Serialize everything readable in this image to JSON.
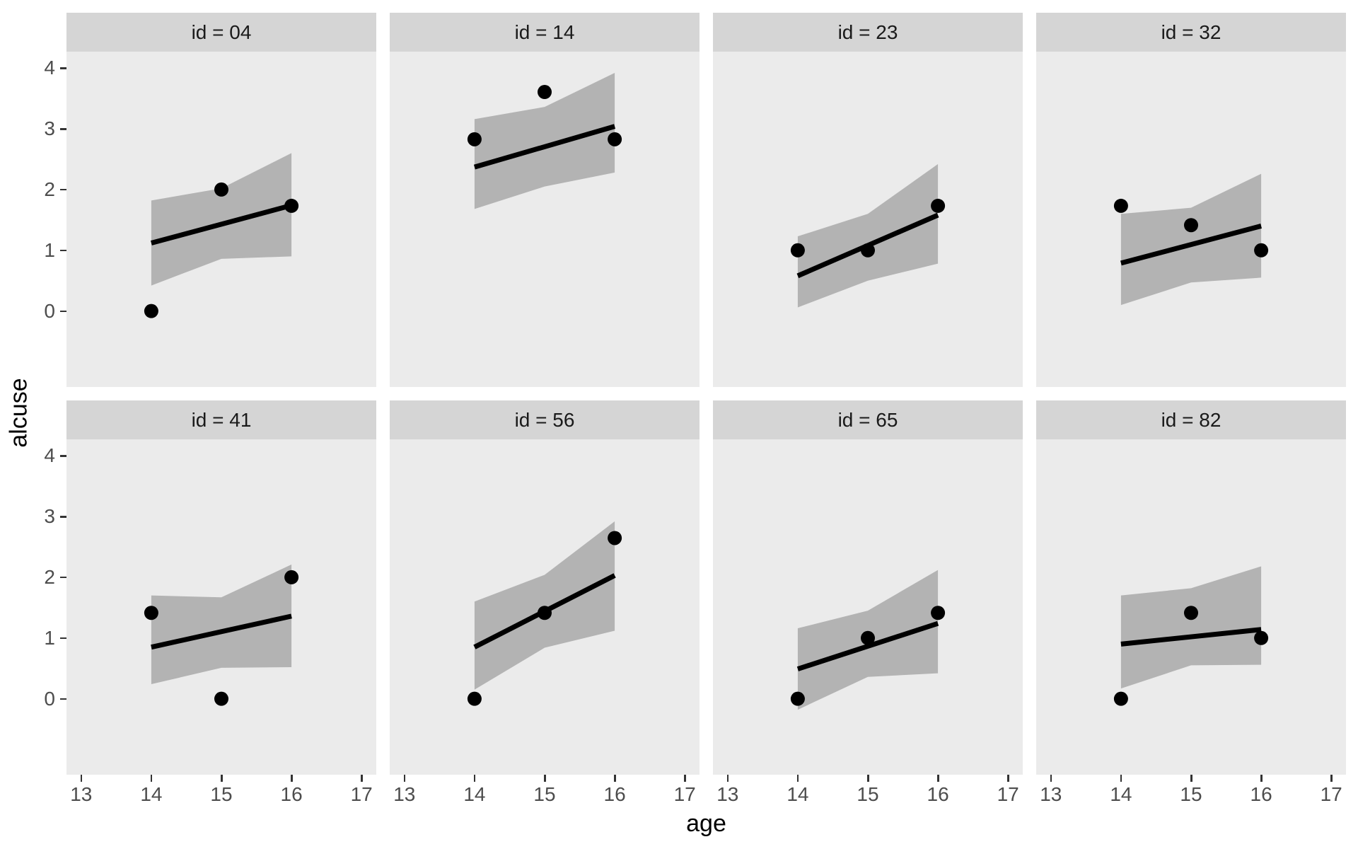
{
  "chart_data": {
    "type": "scatter",
    "title": "",
    "xlabel": "age",
    "ylabel": "alcuse",
    "grid": false,
    "legend": false,
    "facet_layout": {
      "rows": 2,
      "cols": 4
    },
    "x_domain": [
      12.79,
      17.21
    ],
    "y_domain": [
      -1.25,
      4.27
    ],
    "x_ticks": [
      13,
      14,
      15,
      16,
      17
    ],
    "y_ticks": [
      4,
      3,
      2,
      1,
      0
    ],
    "ages": [
      14,
      15,
      16
    ],
    "facets": [
      {
        "label": "id = 04",
        "points": [
          0,
          2.0,
          1.732
        ],
        "line": [
          1.12,
          1.74
        ],
        "ribbon_lo": [
          0.42,
          0.86,
          0.9
        ],
        "ribbon_hi": [
          1.82,
          2.02,
          2.6
        ]
      },
      {
        "label": "id = 14",
        "points": [
          2.828,
          3.606,
          2.828
        ],
        "line": [
          2.37,
          3.04
        ],
        "ribbon_lo": [
          1.68,
          2.05,
          2.28
        ],
        "ribbon_hi": [
          3.16,
          3.36,
          3.92
        ]
      },
      {
        "label": "id = 23",
        "points": [
          1.0,
          1.0,
          1.732
        ],
        "line": [
          0.58,
          1.58
        ],
        "ribbon_lo": [
          0.06,
          0.5,
          0.78
        ],
        "ribbon_hi": [
          1.23,
          1.6,
          2.42
        ]
      },
      {
        "label": "id = 32",
        "points": [
          1.732,
          1.414,
          1.0
        ],
        "line": [
          0.79,
          1.4
        ],
        "ribbon_lo": [
          0.1,
          0.47,
          0.55
        ],
        "ribbon_hi": [
          1.6,
          1.7,
          2.26
        ]
      },
      {
        "label": "id = 41",
        "points": [
          1.414,
          0,
          2.0
        ],
        "line": [
          0.85,
          1.36
        ],
        "ribbon_lo": [
          0.24,
          0.51,
          0.52
        ],
        "ribbon_hi": [
          1.7,
          1.67,
          2.21
        ]
      },
      {
        "label": "id = 56",
        "points": [
          0,
          1.414,
          2.646
        ],
        "line": [
          0.85,
          2.03
        ],
        "ribbon_lo": [
          0.15,
          0.84,
          1.12
        ],
        "ribbon_hi": [
          1.6,
          2.04,
          2.92
        ]
      },
      {
        "label": "id = 65",
        "points": [
          0,
          1.0,
          1.414
        ],
        "line": [
          0.49,
          1.24
        ],
        "ribbon_lo": [
          -0.18,
          0.36,
          0.42
        ],
        "ribbon_hi": [
          1.16,
          1.45,
          2.12
        ]
      },
      {
        "label": "id = 82",
        "points": [
          0,
          1.414,
          1.0
        ],
        "line": [
          0.9,
          1.14
        ],
        "ribbon_lo": [
          0.17,
          0.55,
          0.56
        ],
        "ribbon_hi": [
          1.7,
          1.82,
          2.18
        ]
      }
    ],
    "colors": {
      "background": "#ffffff",
      "panel_fill": "#ebebeb",
      "strip_fill": "#d5d5d5",
      "ribbon_fill": "#b3b3b3",
      "line": "#000000",
      "point": "#000000",
      "axis_text": "#4d4d4d",
      "tick_mark": "#333333",
      "strip_text": "#1a1a1a"
    }
  }
}
